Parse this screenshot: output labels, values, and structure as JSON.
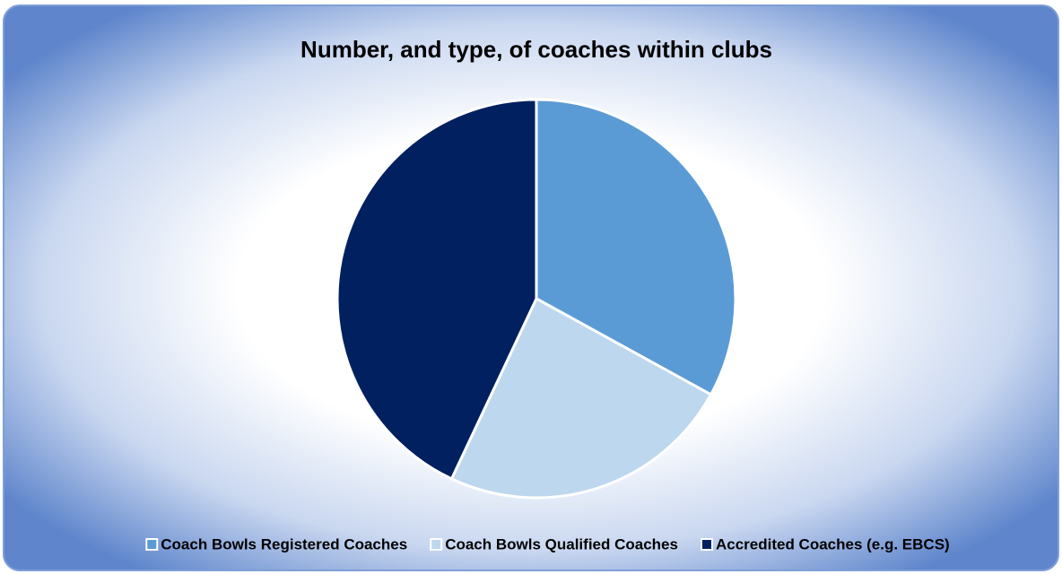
{
  "chart_data": {
    "type": "pie",
    "title": "Number, and type, of coaches within clubs",
    "categories": [
      "Coach Bowls Registered Coaches",
      "Coach Bowls Qualified Coaches",
      "Accredited Coaches (e.g. EBCS)"
    ],
    "values": [
      33,
      24,
      43
    ],
    "colors": [
      "#5b9bd5",
      "#bdd7ee",
      "#002060"
    ],
    "legend": "bottom"
  }
}
